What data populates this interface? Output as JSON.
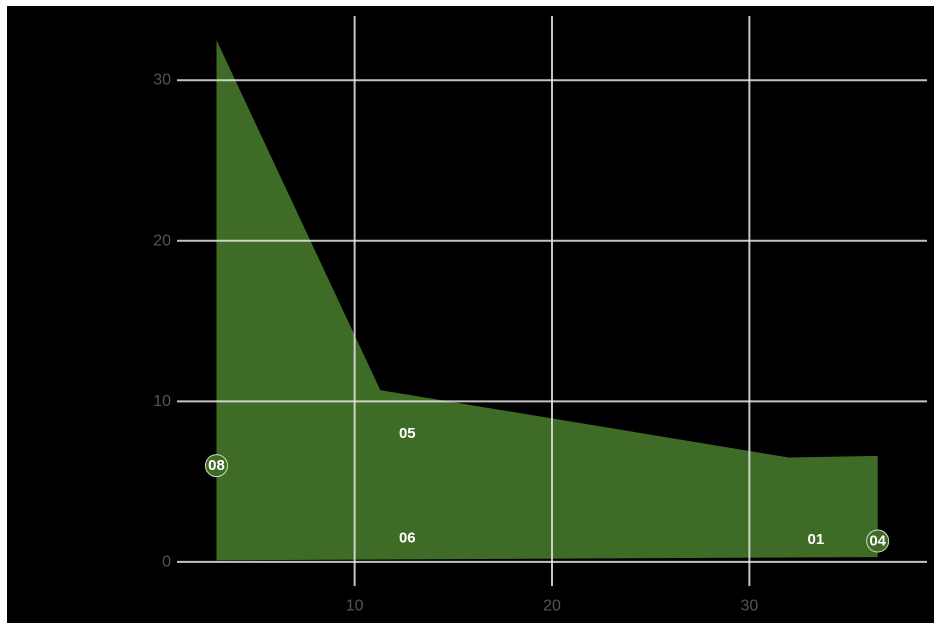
{
  "chart_data": {
    "type": "area",
    "title": "",
    "xlabel": "",
    "ylabel": "",
    "xlim": [
      1,
      39
    ],
    "ylim": [
      -1.5,
      34
    ],
    "x_ticks": [
      10,
      20,
      30
    ],
    "y_ticks": [
      0,
      10,
      20,
      30
    ],
    "x_tick_labels": [
      "10",
      "20",
      "30"
    ],
    "y_tick_labels": [
      "0",
      "10",
      "20",
      "30"
    ],
    "grid": true,
    "legend": "none",
    "area": {
      "upper": [
        {
          "x": 3.0,
          "y": 32.5
        },
        {
          "x": 11.3,
          "y": 10.7
        },
        {
          "x": 32.0,
          "y": 6.5
        },
        {
          "x": 36.5,
          "y": 6.6
        }
      ],
      "lower": [
        {
          "x": 3.0,
          "y": 0.1
        },
        {
          "x": 36.5,
          "y": 0.3
        }
      ]
    },
    "points": [
      {
        "label": "08",
        "x": 3.0,
        "y": 6.0,
        "marker": true
      },
      {
        "label": "05",
        "x": 11.3,
        "y": 8.0,
        "marker": false
      },
      {
        "label": "06",
        "x": 11.3,
        "y": 1.5,
        "marker": false
      },
      {
        "label": "01",
        "x": 32.0,
        "y": 1.4,
        "marker": false
      },
      {
        "label": "04",
        "x": 36.5,
        "y": 1.3,
        "marker": true
      }
    ],
    "colors": {
      "background": "#000000",
      "area_fill": "#3e6b25",
      "grid": "#e6e6e6",
      "tick_text": "#555555",
      "marker_fill": "#3e6b25",
      "label_text": "#ffffff"
    }
  }
}
